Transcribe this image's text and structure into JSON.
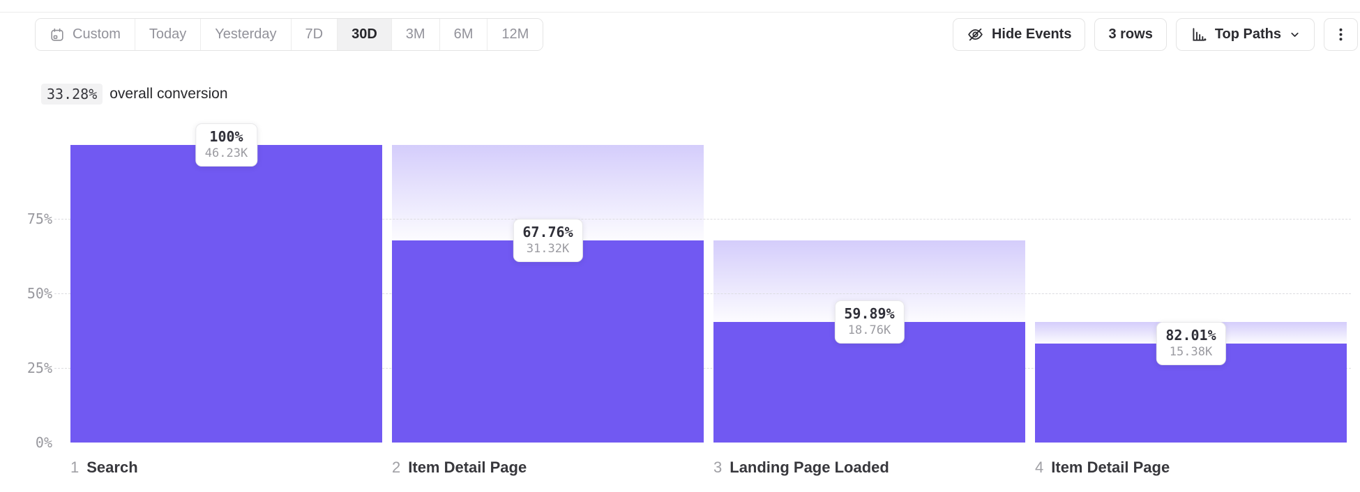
{
  "toolbar": {
    "date_ranges": [
      {
        "label": "Custom",
        "selected": false,
        "icon": "calendar-icon"
      },
      {
        "label": "Today",
        "selected": false
      },
      {
        "label": "Yesterday",
        "selected": false
      },
      {
        "label": "7D",
        "selected": false
      },
      {
        "label": "30D",
        "selected": true
      },
      {
        "label": "3M",
        "selected": false
      },
      {
        "label": "6M",
        "selected": false
      },
      {
        "label": "12M",
        "selected": false
      }
    ],
    "hide_events_label": "Hide Events",
    "rows_label": "3 rows",
    "top_paths_label": "Top Paths"
  },
  "summary": {
    "value": "33.28%",
    "label": "overall conversion"
  },
  "chart_data": {
    "type": "bar",
    "subtype": "funnel",
    "overall_conversion_label": "33.28%",
    "y_axis": {
      "range": [
        0,
        100
      ],
      "ticks": [
        {
          "label": "75%",
          "value": 75
        },
        {
          "label": "50%",
          "value": 50
        },
        {
          "label": "25%",
          "value": 25
        },
        {
          "label": "0%",
          "value": 0
        }
      ],
      "gridlines": [
        75,
        50,
        25
      ],
      "grid_style": "dashed"
    },
    "steps": [
      {
        "index": "1",
        "name": "Search",
        "conversion_label": "100%",
        "conversion_from_prev_pct": 100,
        "count_label": "46.23K",
        "overall_pct": 100
      },
      {
        "index": "2",
        "name": "Item Detail Page",
        "conversion_label": "67.76%",
        "conversion_from_prev_pct": 67.76,
        "count_label": "31.32K",
        "overall_pct": 67.76
      },
      {
        "index": "3",
        "name": "Landing Page Loaded",
        "conversion_label": "59.89%",
        "conversion_from_prev_pct": 59.89,
        "count_label": "18.76K",
        "overall_pct": 40.58
      },
      {
        "index": "4",
        "name": "Item Detail Page",
        "conversion_label": "82.01%",
        "conversion_from_prev_pct": 82.01,
        "count_label": "15.38K",
        "overall_pct": 33.27
      }
    ],
    "colors": {
      "bar": "#7159F2",
      "gradient_top": "rgba(113,89,242,0.30)",
      "gradient_bottom": "rgba(113,89,242,0.02)",
      "gridline": "#DCDCE0"
    }
  }
}
